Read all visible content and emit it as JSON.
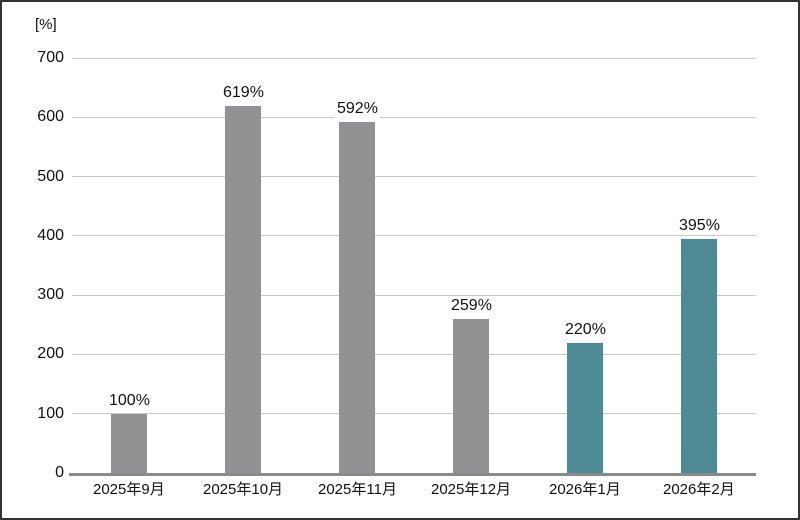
{
  "chart_data": {
    "type": "bar",
    "title": "",
    "unit_label": "[%]",
    "categories": [
      "2025年9月",
      "2025年10月",
      "2025年11月",
      "2025年12月",
      "2026年1月",
      "2026年2月"
    ],
    "values": [
      100,
      619,
      592,
      259,
      220,
      395
    ],
    "value_labels": [
      "100%",
      "619%",
      "592%",
      "259%",
      "220%",
      "395%"
    ],
    "bar_color_keys": [
      "gray",
      "gray",
      "gray",
      "gray",
      "teal",
      "teal"
    ],
    "palette": {
      "gray": "#929295",
      "teal": "#4d8a96"
    },
    "xlabel": "",
    "ylabel": "[%]",
    "ylim": [
      0,
      700
    ],
    "yticks": [
      0,
      100,
      200,
      300,
      400,
      500,
      600,
      700
    ],
    "grid": true,
    "legend_position": "none"
  },
  "colors": {
    "background": "#ffffff",
    "border": "#333333",
    "gridline": "#c9c9c9",
    "axis_line": "#8a8a8a",
    "text": "#111111"
  }
}
